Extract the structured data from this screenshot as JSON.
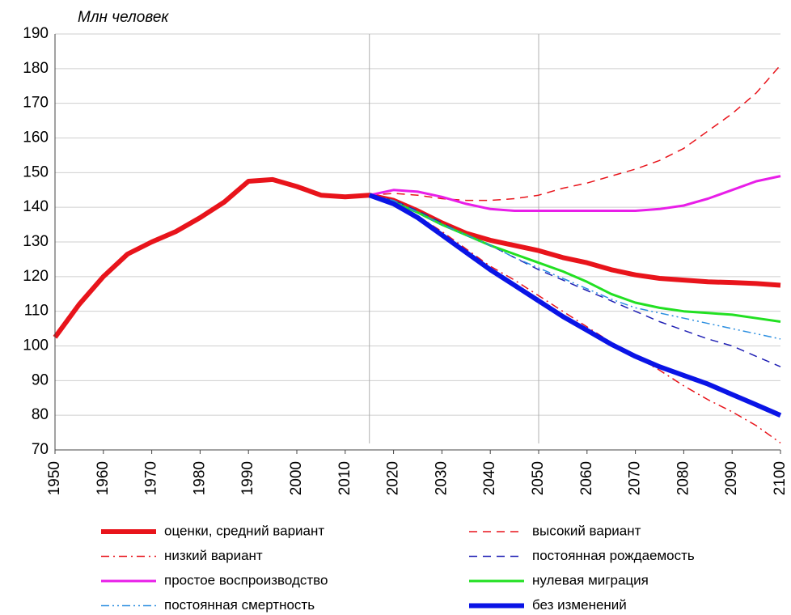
{
  "chart_data": {
    "type": "line",
    "y_axis_label": "Млн  человек",
    "x": [
      1950,
      1955,
      1960,
      1965,
      1970,
      1975,
      1980,
      1985,
      1990,
      1995,
      2000,
      2005,
      2010,
      2015,
      2020,
      2025,
      2030,
      2035,
      2040,
      2045,
      2050,
      2055,
      2060,
      2065,
      2070,
      2075,
      2080,
      2085,
      2090,
      2095,
      2100
    ],
    "xlim": [
      1950,
      2100
    ],
    "xticks": [
      1950,
      1960,
      1970,
      1980,
      1990,
      2000,
      2010,
      2020,
      2030,
      2040,
      2050,
      2060,
      2070,
      2080,
      2090,
      2100
    ],
    "ylim": [
      70,
      190
    ],
    "yticks": [
      70,
      80,
      90,
      100,
      110,
      120,
      130,
      140,
      150,
      160,
      170,
      180,
      190
    ],
    "grid": true,
    "vlines": [
      2015,
      2050
    ],
    "series": [
      {
        "name": "оценки, средний вариант",
        "color": "#e8141b",
        "width": 6,
        "dash": "solid",
        "values": [
          102.5,
          112,
          120,
          126.5,
          130,
          133,
          137,
          141.5,
          147.5,
          148,
          146,
          143.5,
          143,
          143.5,
          142,
          139,
          135.5,
          132.5,
          130.5,
          129,
          127.5,
          125.5,
          124,
          122,
          120.5,
          119.5,
          119,
          118.5,
          118.3,
          118,
          117.5
        ]
      },
      {
        "name": "высокий вариант",
        "color": "#e8141b",
        "width": 1.5,
        "dash": "dash",
        "values": [
          null,
          null,
          null,
          null,
          null,
          null,
          null,
          null,
          null,
          null,
          null,
          null,
          null,
          143.5,
          144,
          143.5,
          142.5,
          142,
          142,
          142.5,
          143.5,
          145.5,
          147,
          149,
          151,
          153.5,
          157,
          162,
          167,
          173,
          181
        ]
      },
      {
        "name": "низкий вариант",
        "color": "#e8141b",
        "width": 1.5,
        "dash": "dashdot",
        "values": [
          null,
          null,
          null,
          null,
          null,
          null,
          null,
          null,
          null,
          null,
          null,
          null,
          null,
          143.5,
          142,
          137.5,
          133,
          128,
          123,
          119,
          114.5,
          110,
          105.5,
          101,
          97,
          93,
          88.5,
          84.5,
          81,
          77,
          72
        ]
      },
      {
        "name": "постоянная рождаемость",
        "color": "#1f1fb4",
        "width": 1.5,
        "dash": "dash",
        "values": [
          null,
          null,
          null,
          null,
          null,
          null,
          null,
          null,
          null,
          null,
          null,
          null,
          null,
          143.5,
          142,
          139,
          135.5,
          132,
          129,
          125.5,
          122,
          119,
          116,
          113,
          110,
          107,
          104.5,
          102,
          100,
          97,
          94
        ]
      },
      {
        "name": "простое воспроизводство",
        "color": "#e81ee8",
        "width": 3,
        "dash": "solid",
        "values": [
          null,
          null,
          null,
          null,
          null,
          null,
          null,
          null,
          null,
          null,
          null,
          null,
          null,
          143.5,
          145,
          144.5,
          143,
          141,
          139.5,
          139,
          139,
          139,
          139,
          139,
          139,
          139.5,
          140.5,
          142.5,
          145,
          147.5,
          149
        ]
      },
      {
        "name": "нулевая миграция",
        "color": "#22e022",
        "width": 3,
        "dash": "solid",
        "values": [
          null,
          null,
          null,
          null,
          null,
          null,
          null,
          null,
          null,
          null,
          null,
          null,
          null,
          143.5,
          141.5,
          138.5,
          135,
          132,
          129,
          126.5,
          124,
          121.5,
          118.5,
          115,
          112.5,
          111,
          110,
          109.5,
          109,
          108,
          107
        ]
      },
      {
        "name": "постоянная смертность",
        "color": "#2a8ee0",
        "width": 1.5,
        "dash": "dashdotdot",
        "values": [
          null,
          null,
          null,
          null,
          null,
          null,
          null,
          null,
          null,
          null,
          null,
          null,
          null,
          143.5,
          142,
          138.5,
          135,
          132,
          129,
          125.5,
          122.5,
          119.5,
          116.5,
          113.5,
          111,
          109.5,
          108,
          106.5,
          105,
          103.5,
          102
        ]
      },
      {
        "name": "без изменений",
        "color": "#0a14e6",
        "width": 6,
        "dash": "solid",
        "values": [
          null,
          null,
          null,
          null,
          null,
          null,
          null,
          null,
          null,
          null,
          null,
          null,
          null,
          143.5,
          141,
          137,
          132,
          127,
          122,
          117.5,
          113,
          108.5,
          104.5,
          100.5,
          97,
          94,
          91.5,
          89,
          86,
          83,
          80
        ]
      }
    ]
  }
}
